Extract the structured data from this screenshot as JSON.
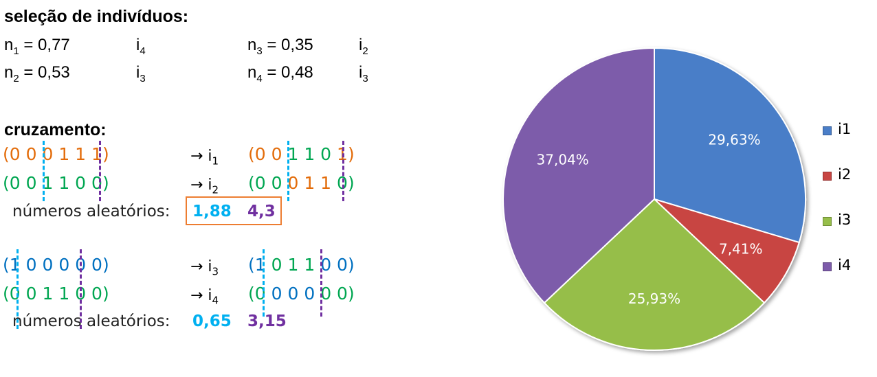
{
  "selection": {
    "title": "seleção de indivíduos:",
    "rows": [
      {
        "n_label": "n",
        "n_sub": "1",
        "n_value": "= 0,77",
        "i_label": "i",
        "i_sub": "4"
      },
      {
        "n_label": "n",
        "n_sub": "2",
        "n_value": "= 0,53",
        "i_label": "i",
        "i_sub": "3"
      },
      {
        "n_label": "n",
        "n_sub": "3",
        "n_value": "= 0,35",
        "i_label": "i",
        "i_sub": "2"
      },
      {
        "n_label": "n",
        "n_sub": "4",
        "n_value": "= 0,48",
        "i_label": "i",
        "i_sub": "3"
      }
    ]
  },
  "crossover": {
    "title": "cruzamento:",
    "pair1": {
      "parent1": [
        "(0 0",
        "0 1 1",
        "1)"
      ],
      "parent2": [
        "(0 0",
        "1 1 0",
        "0)"
      ],
      "child1": [
        "(0 0",
        "1 1 0",
        "1)"
      ],
      "child2": [
        "(0 0",
        "0 1 1",
        "0)"
      ],
      "arrow1": "→ i",
      "arrow1_sub": "1",
      "arrow2": "→ i",
      "arrow2_sub": "2",
      "random_label": "números aleatórios:",
      "random_values": [
        "1,88",
        "4,3"
      ]
    },
    "pair2": {
      "parent1": [
        "(1",
        "0 0 0",
        "0 0)"
      ],
      "parent2": [
        "(0",
        "0 1 1",
        "0 0)"
      ],
      "child1": [
        "(1",
        "0 1 1",
        "0 0)"
      ],
      "child2": [
        "(0",
        "0 0 0",
        "0 0)"
      ],
      "arrow1": "→ i",
      "arrow1_sub": "3",
      "arrow2": "→ i",
      "arrow2_sub": "4",
      "random_label": "números aleatórios:",
      "random_values": [
        "0,65",
        "3,15"
      ]
    }
  },
  "colors": {
    "orange": "#E36C0A",
    "green": "#00A651",
    "blue": "#0070C0",
    "cyan": "#00B0F0",
    "purple": "#7030A0",
    "box": "#ED7D31"
  },
  "chart_data": {
    "type": "pie",
    "labels": [
      "i1",
      "i2",
      "i3",
      "i4"
    ],
    "values": [
      29.63,
      7.41,
      25.93,
      37.04
    ],
    "data_labels": [
      "29,63%",
      "7,41%",
      "25,93%",
      "37,04%"
    ],
    "colors": [
      "#4A7EC8",
      "#C84542",
      "#96BE4A",
      "#7D5BAA"
    ],
    "legend_position": "right",
    "start_angle": "12 o'clock",
    "direction": "clockwise"
  }
}
